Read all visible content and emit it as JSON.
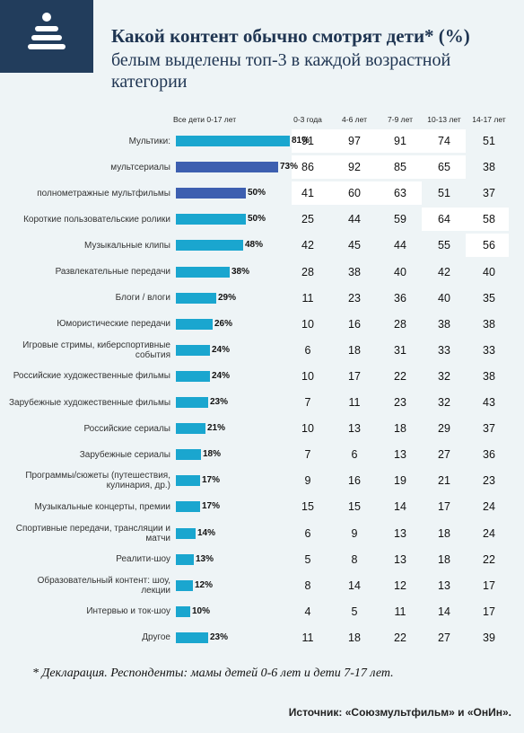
{
  "header": {
    "title": "Какой контент обычно смотрят дети* (%)",
    "subtitle": "белым выделены топ-3 в каждой возрастной категории",
    "logo_icon": "stacked-rings-icon"
  },
  "chart_data": {
    "type": "bar",
    "title": "Какой контент обычно смотрят дети* (%)",
    "subtitle": "белым выделены топ-3 в каждой возрастной категории",
    "bar_series_name": "Все дети 0-17 лет",
    "age_columns": [
      "0-3 года",
      "4-6 лет",
      "7-9 лет",
      "10-13 лет",
      "14-17 лет"
    ],
    "xlim": [
      0,
      100
    ],
    "colors": {
      "primary": "#1aa6cf",
      "secondary": "#3d5fb0",
      "highlight": "#ffffff"
    },
    "rows": [
      {
        "label": "Мультики:",
        "value": 81,
        "ages": [
          91,
          97,
          91,
          74,
          51
        ],
        "top3": [
          true,
          true,
          true,
          true,
          false
        ]
      },
      {
        "label": "мультсериалы",
        "value": 73,
        "ages": [
          86,
          92,
          85,
          65,
          38
        ],
        "top3": [
          true,
          true,
          true,
          true,
          false
        ]
      },
      {
        "label": "полнометражные мультфильмы",
        "value": 50,
        "ages": [
          41,
          60,
          63,
          51,
          37
        ],
        "top3": [
          true,
          true,
          true,
          false,
          false
        ]
      },
      {
        "label": "Короткие пользовательские ролики",
        "value": 50,
        "ages": [
          25,
          44,
          59,
          64,
          58
        ],
        "top3": [
          false,
          false,
          false,
          true,
          true
        ]
      },
      {
        "label": "Музыкальные клипы",
        "value": 48,
        "ages": [
          42,
          45,
          44,
          55,
          56
        ],
        "top3": [
          false,
          false,
          false,
          false,
          true
        ]
      },
      {
        "label": "Развлекательные передачи",
        "value": 38,
        "ages": [
          28,
          38,
          40,
          42,
          40
        ]
      },
      {
        "label": "Блоги / влоги",
        "value": 29,
        "ages": [
          11,
          23,
          36,
          40,
          35
        ]
      },
      {
        "label": "Юмористические передачи",
        "value": 26,
        "ages": [
          10,
          16,
          28,
          38,
          38
        ]
      },
      {
        "label": "Игровые стримы, киберспортивные события",
        "value": 24,
        "ages": [
          6,
          18,
          31,
          33,
          33
        ]
      },
      {
        "label": "Российские художественные фильмы",
        "value": 24,
        "ages": [
          10,
          17,
          22,
          32,
          38
        ]
      },
      {
        "label": "Зарубежные художественные фильмы",
        "value": 23,
        "ages": [
          7,
          11,
          23,
          32,
          43
        ]
      },
      {
        "label": "Российские сериалы",
        "value": 21,
        "ages": [
          10,
          13,
          18,
          29,
          37
        ]
      },
      {
        "label": "Зарубежные сериалы",
        "value": 18,
        "ages": [
          7,
          6,
          13,
          27,
          36
        ]
      },
      {
        "label": "Программы/сюжеты (путешествия, кулинария, др.)",
        "value": 17,
        "ages": [
          9,
          16,
          19,
          21,
          23
        ]
      },
      {
        "label": "Музыкальные концерты, премии",
        "value": 17,
        "ages": [
          15,
          15,
          14,
          17,
          24
        ]
      },
      {
        "label": "Спортивные передачи, трансляции и матчи",
        "value": 14,
        "ages": [
          6,
          9,
          13,
          18,
          24
        ]
      },
      {
        "label": "Реалити-шоу",
        "value": 13,
        "ages": [
          5,
          8,
          13,
          18,
          22
        ]
      },
      {
        "label": "Образовательный контент: шоу, лекции",
        "value": 12,
        "ages": [
          8,
          14,
          12,
          13,
          17
        ]
      },
      {
        "label": "Интервью и ток-шоу",
        "value": 10,
        "ages": [
          4,
          5,
          11,
          14,
          17
        ]
      },
      {
        "label": "Другое",
        "value": 23,
        "ages": [
          11,
          18,
          22,
          27,
          39
        ]
      }
    ]
  },
  "footer": {
    "footnote": "* Декларация. Респонденты: мамы детей 0-6 лет и дети 7-17 лет.",
    "source": "Источник: «Союзмультфильм» и «ОнИн»."
  }
}
